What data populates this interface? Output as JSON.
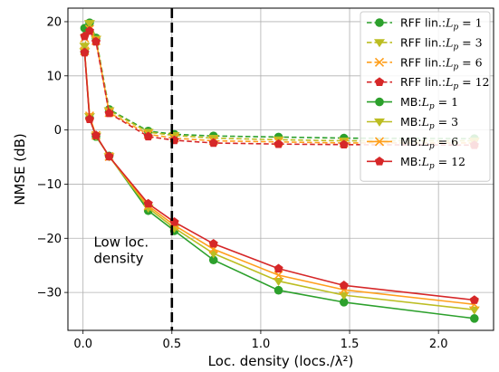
{
  "chart_data": {
    "type": "line",
    "title": "",
    "xlabel": "Loc. density (locs./λ²)",
    "ylabel": "NMSE (dB)",
    "xlim": [
      -0.085,
      2.31
    ],
    "ylim": [
      -37,
      22.5
    ],
    "xticks": [
      0.0,
      0.5,
      1.0,
      1.5,
      2.0
    ],
    "xtick_labels": [
      "0.0",
      "0.5",
      "1.0",
      "1.5",
      "2.0"
    ],
    "yticks": [
      -30,
      -20,
      -10,
      0,
      10,
      20
    ],
    "ytick_labels": [
      "−30",
      "−20",
      "−10",
      "0",
      "10",
      "20"
    ],
    "grid": true,
    "legend_position": "top-right",
    "x": [
      0.009,
      0.037,
      0.073,
      0.147,
      0.367,
      0.514,
      0.734,
      1.1,
      1.468,
      2.202
    ],
    "series": [
      {
        "name": "RFF lin.:",
        "sub": "L_p=1",
        "color": "#2ca02c",
        "dashed": true,
        "marker": "circle",
        "values": [
          18.8,
          19.8,
          17.0,
          3.8,
          -0.2,
          -0.8,
          -1.1,
          -1.3,
          -1.5,
          -1.6
        ]
      },
      {
        "name": "RFF lin.:",
        "sub": "L_p=3",
        "color": "#bcbd22",
        "dashed": true,
        "marker": "tri_down",
        "values": [
          15.5,
          19.7,
          16.8,
          3.6,
          -0.4,
          -1.0,
          -1.5,
          -1.8,
          -2.0,
          -2.0
        ]
      },
      {
        "name": "RFF lin.:",
        "sub": "L_p=6",
        "color": "#ff9f1c",
        "dashed": true,
        "marker": "x",
        "values": [
          17.0,
          18.6,
          16.5,
          3.2,
          -0.8,
          -1.5,
          -2.0,
          -2.2,
          -2.4,
          -2.4
        ]
      },
      {
        "name": "RFF lin.:",
        "sub": "L_p=12",
        "color": "#d62728",
        "dashed": true,
        "marker": "pentagon",
        "values": [
          17.3,
          18.3,
          16.3,
          3.1,
          -1.2,
          -1.9,
          -2.4,
          -2.6,
          -2.7,
          -2.8
        ]
      },
      {
        "name": "MB:",
        "sub": "L_p=1",
        "color": "#2ca02c",
        "dashed": false,
        "marker": "circle",
        "values": [
          14.4,
          2.2,
          -1.2,
          -4.8,
          -14.9,
          -18.6,
          -24.0,
          -29.6,
          -31.8,
          -34.8
        ]
      },
      {
        "name": "MB:",
        "sub": "L_p=3",
        "color": "#bcbd22",
        "dashed": false,
        "marker": "tri_down",
        "values": [
          14.5,
          2.5,
          -1.1,
          -4.9,
          -14.4,
          -18.1,
          -22.8,
          -27.9,
          -30.5,
          -33.2
        ]
      },
      {
        "name": "MB:",
        "sub": "L_p=6",
        "color": "#ff9f1c",
        "dashed": false,
        "marker": "x",
        "values": [
          14.6,
          2.6,
          -1.0,
          -4.9,
          -14.0,
          -17.6,
          -22.0,
          -26.8,
          -29.5,
          -32.2
        ]
      },
      {
        "name": "MB:",
        "sub": "L_p=12",
        "color": "#d62728",
        "dashed": false,
        "marker": "pentagon",
        "values": [
          14.3,
          2.0,
          -1.0,
          -4.9,
          -13.6,
          -17.0,
          -21.0,
          -25.6,
          -28.7,
          -31.4
        ]
      }
    ],
    "vline": {
      "x": 0.5,
      "color": "#000000"
    },
    "annotation": {
      "lines": [
        "Low loc.",
        "density"
      ],
      "x": 0.06,
      "y": -21.5
    }
  }
}
